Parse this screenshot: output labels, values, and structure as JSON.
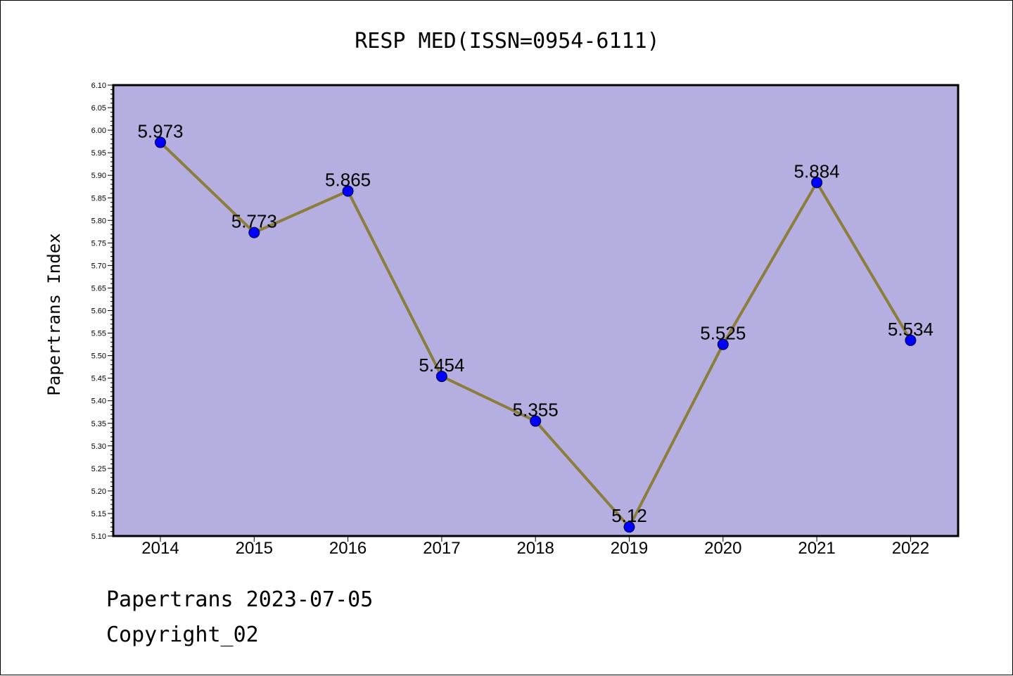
{
  "footer": {
    "line1": "Papertrans 2023-07-05",
    "line2": "Copyright_02"
  },
  "chart_data": {
    "type": "line",
    "title": "RESP MED(ISSN=0954-6111)",
    "xlabel": "",
    "ylabel": "Papertrans Index",
    "categories": [
      "2014",
      "2015",
      "2016",
      "2017",
      "2018",
      "2019",
      "2020",
      "2021",
      "2022"
    ],
    "series": [
      {
        "values": [
          5.973,
          5.773,
          5.865,
          5.454,
          5.355,
          5.12,
          5.525,
          5.884,
          5.534
        ],
        "data_labels": [
          "5.973",
          "5.773",
          "5.865",
          "5.454",
          "5.355",
          "5.12",
          "5.525",
          "5.884",
          "5.534"
        ]
      }
    ],
    "ylim": [
      5.1,
      6.1
    ],
    "yticks": [
      "5.10",
      "5.15",
      "5.20",
      "5.25",
      "5.30",
      "5.35",
      "5.40",
      "5.45",
      "5.50",
      "5.55",
      "5.60",
      "5.65",
      "5.70",
      "5.75",
      "5.80",
      "5.85",
      "5.90",
      "5.95",
      "6.00",
      "6.05",
      "6.10"
    ],
    "grid": false,
    "legend": "none",
    "colors": {
      "plot_background": "#b5aee1",
      "line": "#8b7d3a",
      "marker": "#0000ff",
      "axis": "#000000"
    }
  }
}
